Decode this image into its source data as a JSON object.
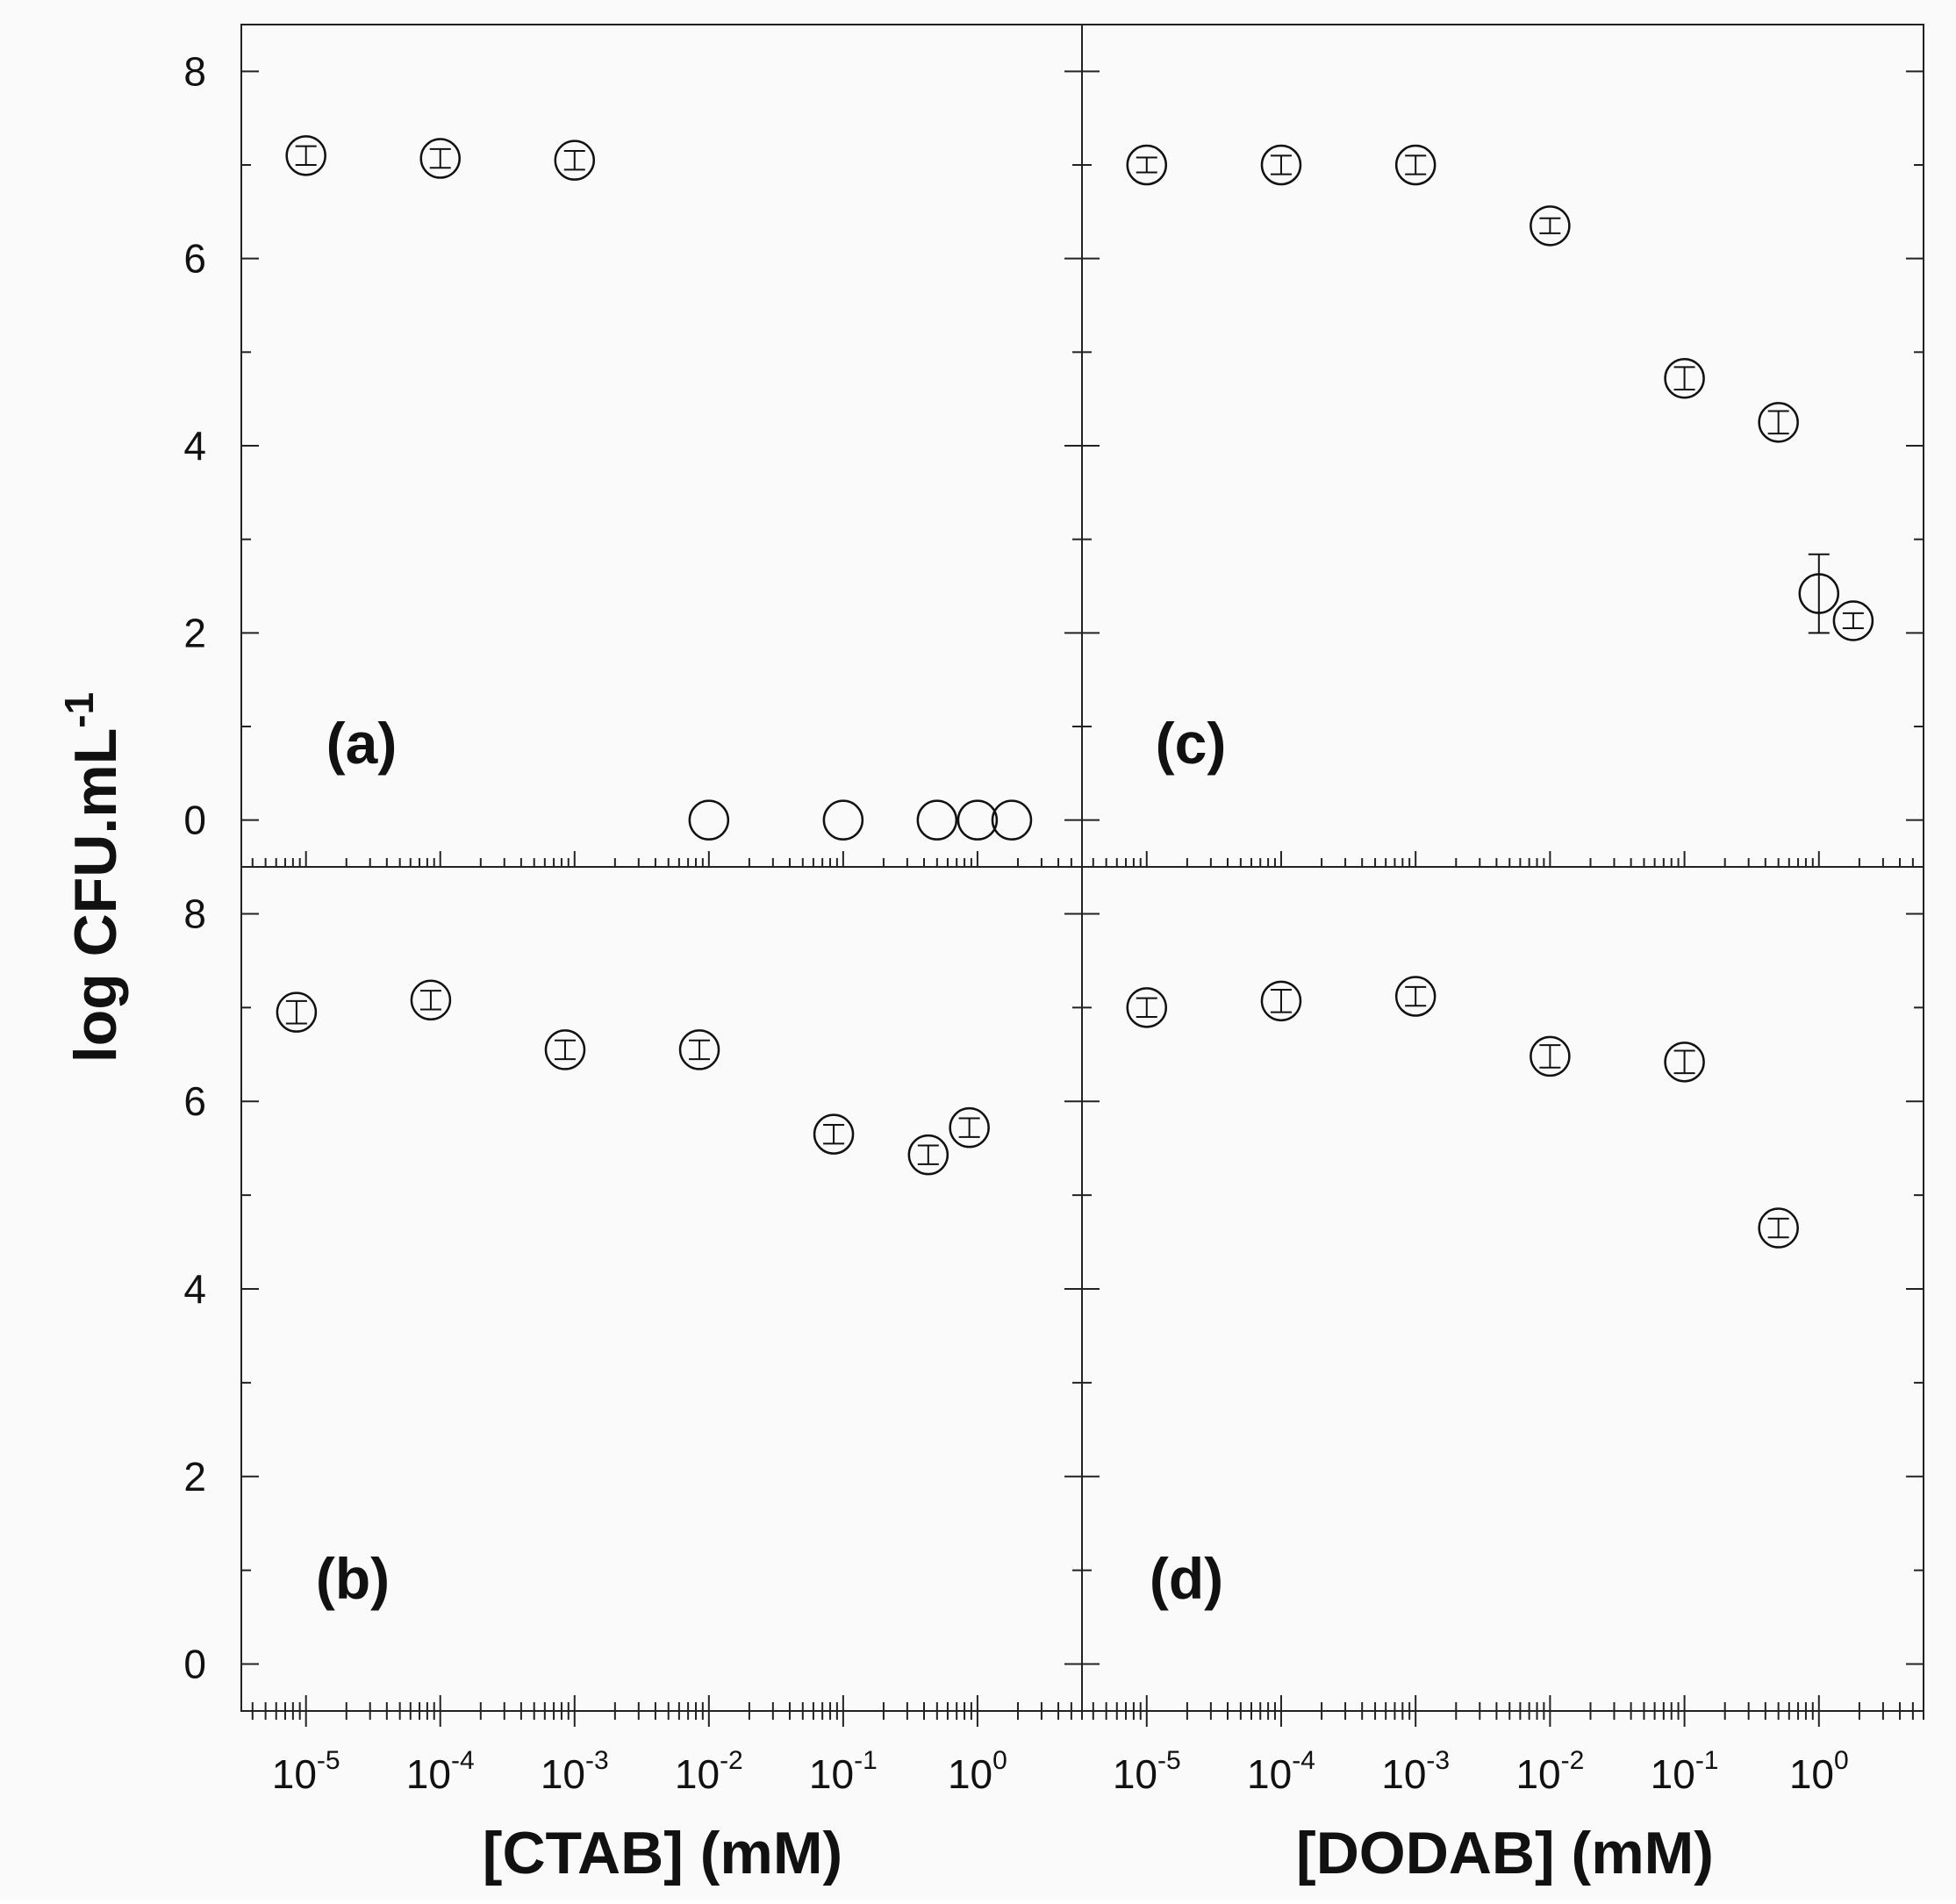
{
  "figure": {
    "ylabel": "log CFU.mL",
    "ylabel_sup": "-1",
    "xlabel_left": "[CTAB] (mM)",
    "xlabel_right": "[DODAB] (mM)"
  },
  "chart_data": [
    {
      "type": "scatter",
      "panel": "(a)",
      "x_scale": "log",
      "xlim": [
        3.3e-06,
        6
      ],
      "ylim": [
        -0.5,
        8.5
      ],
      "yticks": [
        0,
        2,
        4,
        6,
        8
      ],
      "xticks": [
        "10^-5",
        "10^-4",
        "10^-3",
        "10^-2",
        "10^-1",
        "10^0"
      ],
      "points": [
        {
          "x": 1e-05,
          "y": 7.1,
          "err": 0.1
        },
        {
          "x": 0.0001,
          "y": 7.07,
          "err": 0.1
        },
        {
          "x": 0.001,
          "y": 7.05,
          "err": 0.1
        },
        {
          "x": 0.01,
          "y": 0.0,
          "err": 0
        },
        {
          "x": 0.1,
          "y": 0.0,
          "err": 0
        },
        {
          "x": 0.5,
          "y": 0.0,
          "err": 0
        },
        {
          "x": 1,
          "y": 0.0,
          "err": 0
        },
        {
          "x": 1.8,
          "y": 0.0,
          "err": 0
        }
      ]
    },
    {
      "type": "scatter",
      "panel": "(b)",
      "x_scale": "log",
      "xlim": [
        3.3e-06,
        6
      ],
      "ylim": [
        -0.5,
        8.5
      ],
      "yticks": [
        0,
        2,
        4,
        6,
        8
      ],
      "xticks": [
        "10^-5",
        "10^-4",
        "10^-3",
        "10^-2",
        "10^-1",
        "10^0"
      ],
      "points": [
        {
          "x": 8.5e-06,
          "y": 6.95,
          "err": 0.12
        },
        {
          "x": 8.5e-05,
          "y": 7.08,
          "err": 0.1
        },
        {
          "x": 0.00085,
          "y": 6.55,
          "err": 0.1
        },
        {
          "x": 0.0085,
          "y": 6.55,
          "err": 0.1
        },
        {
          "x": 0.085,
          "y": 5.65,
          "err": 0.1
        },
        {
          "x": 0.43,
          "y": 5.43,
          "err": 0.1
        },
        {
          "x": 0.87,
          "y": 5.72,
          "err": 0.1
        }
      ]
    },
    {
      "type": "scatter",
      "panel": "(c)",
      "x_scale": "log",
      "xlim": [
        3.3e-06,
        6
      ],
      "ylim": [
        -0.5,
        8.5
      ],
      "yticks": [
        0,
        2,
        4,
        6,
        8
      ],
      "xticks": [
        "10^-5",
        "10^-4",
        "10^-3",
        "10^-2",
        "10^-1",
        "10^0"
      ],
      "points": [
        {
          "x": 1e-05,
          "y": 7.0,
          "err": 0.08
        },
        {
          "x": 0.0001,
          "y": 7.0,
          "err": 0.1
        },
        {
          "x": 0.001,
          "y": 7.0,
          "err": 0.1
        },
        {
          "x": 0.01,
          "y": 6.35,
          "err": 0.08
        },
        {
          "x": 0.1,
          "y": 4.72,
          "err": 0.12
        },
        {
          "x": 0.5,
          "y": 4.25,
          "err": 0.12
        },
        {
          "x": 1,
          "y": 2.42,
          "err": 0.42
        },
        {
          "x": 1.8,
          "y": 2.13,
          "err": 0.08
        }
      ]
    },
    {
      "type": "scatter",
      "panel": "(d)",
      "x_scale": "log",
      "xlim": [
        3.3e-06,
        6
      ],
      "ylim": [
        -0.5,
        8.5
      ],
      "yticks": [
        0,
        2,
        4,
        6,
        8
      ],
      "xticks": [
        "10^-5",
        "10^-4",
        "10^-3",
        "10^-2",
        "10^-1",
        "10^0"
      ],
      "points": [
        {
          "x": 1e-05,
          "y": 7.0,
          "err": 0.1
        },
        {
          "x": 0.0001,
          "y": 7.07,
          "err": 0.12
        },
        {
          "x": 0.001,
          "y": 7.12,
          "err": 0.1
        },
        {
          "x": 0.01,
          "y": 6.48,
          "err": 0.12
        },
        {
          "x": 0.1,
          "y": 6.42,
          "err": 0.12
        },
        {
          "x": 0.5,
          "y": 4.65,
          "err": 0.1
        }
      ]
    }
  ]
}
